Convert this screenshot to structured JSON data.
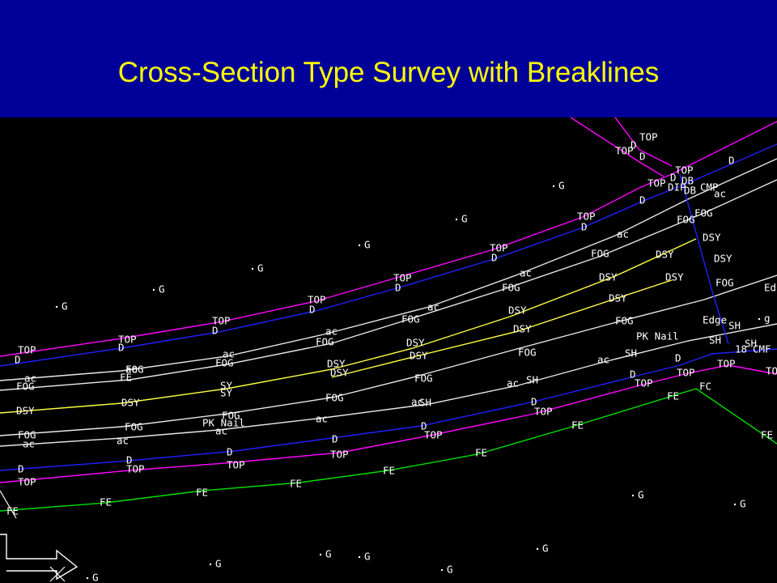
{
  "title": "Cross-Section Type Survey with Breaklines",
  "labels": [
    "TOP",
    "D",
    "TOP",
    "D",
    "TOP",
    "D",
    "TOP",
    "D",
    "TOP",
    "D",
    "TOP",
    "D",
    "TOP",
    "D",
    "TOP",
    "D",
    "TOP",
    "D",
    "TOP",
    "D",
    "DIP",
    "D",
    "DB",
    "DB",
    "TOP",
    "CMP",
    "ac",
    "D",
    "FOG",
    "FOG",
    "DSY",
    "DSY",
    "DSY",
    "DSY",
    "FOG",
    "Ed",
    "FOG",
    "ac",
    "ac",
    "FOG",
    "DSY",
    "DSY",
    "DSY",
    "DSY",
    "FOG",
    "FOG",
    "ac",
    "SH",
    "PK Nail",
    "Edge",
    "SH",
    "SH",
    "SH",
    "18",
    "CMF",
    "ac",
    "FOG",
    "ac",
    "FOG",
    "DSY",
    "DSY",
    "DSY",
    "DSY",
    "ac",
    "FOG",
    "FOG",
    "ac",
    "SH",
    "ac",
    "SH",
    "FOG",
    "ac",
    "D",
    "TOP",
    "D",
    "TOP",
    "D",
    "TOP",
    "D",
    "TOP",
    "TOP",
    "TO",
    "FC",
    "FE",
    "FE",
    "FE",
    "FE",
    "FE",
    "FE",
    "FE",
    "FE",
    "FE",
    "FE",
    "ac",
    "FOG",
    "SY",
    "SY",
    "DSY",
    "DSY",
    "FOG",
    "ac",
    "FOG",
    "PK Nail",
    "ac",
    "FOG",
    "ac",
    "FOG",
    "ac",
    "D",
    "TOP",
    "D",
    "TOP",
    "D",
    "TOP",
    "D",
    "TOP",
    "G",
    "G",
    "G",
    "G",
    "G",
    "G",
    "G",
    "G",
    "g",
    "G",
    "G",
    "G",
    "G",
    "G",
    "G"
  ]
}
